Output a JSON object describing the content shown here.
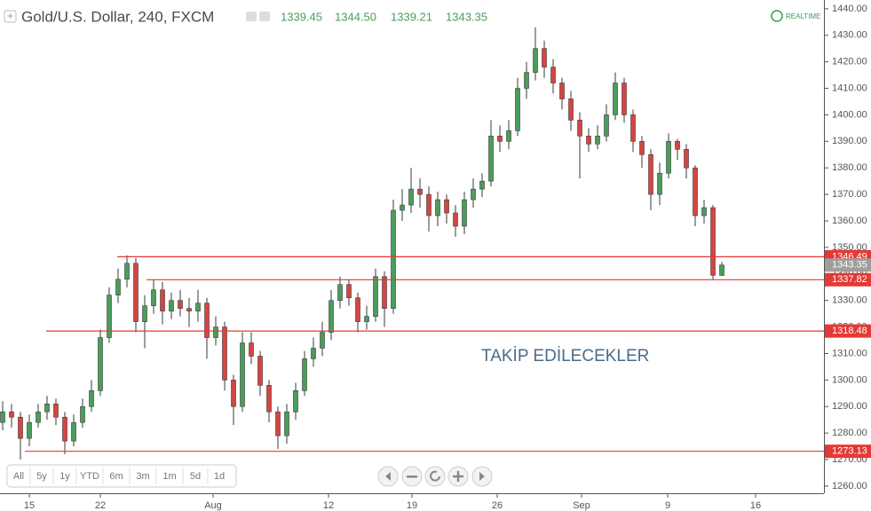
{
  "chart_data": {
    "type": "candlestick",
    "title": "Gold/U.S. Dollar, 240, FXCM",
    "header_values": [
      "1339.45",
      "1344.50",
      "1339.21",
      "1343.35"
    ],
    "realtime": "REALTIME",
    "annotation": "TAKİP EDİLECEKLER",
    "range_buttons": [
      "All",
      "5y",
      "1y",
      "YTD",
      "6m",
      "3m",
      "1m",
      "5d",
      "1d"
    ],
    "x": [
      0,
      1,
      2,
      3,
      4,
      5,
      6,
      7,
      8,
      9,
      10,
      11,
      12,
      13,
      14,
      15,
      16,
      17,
      18,
      19,
      20,
      21,
      22,
      23,
      24,
      25,
      26,
      27,
      28,
      29,
      30,
      31,
      32,
      33,
      34,
      35,
      36,
      37,
      38,
      39,
      40,
      41,
      42,
      43,
      44,
      45,
      46,
      47,
      48,
      49,
      50,
      51,
      52,
      53,
      54,
      55,
      56,
      57,
      58,
      59,
      60,
      61,
      62,
      63,
      64,
      65,
      66,
      67,
      68,
      69,
      70,
      71,
      72,
      73,
      74,
      75,
      76,
      77,
      78,
      79,
      80,
      81
    ],
    "open": [
      1284,
      1288,
      1286,
      1278,
      1284,
      1288,
      1291,
      1286,
      1277,
      1284,
      1290,
      1296,
      1316,
      1332,
      1338,
      1344,
      1322,
      1328,
      1334,
      1326,
      1330,
      1327,
      1326,
      1329,
      1316,
      1320,
      1300,
      1290,
      1314,
      1309,
      1298,
      1288,
      1279,
      1288,
      1296,
      1308,
      1312,
      1318,
      1330,
      1336,
      1331,
      1322,
      1324,
      1339,
      1327,
      1364,
      1366,
      1372,
      1370,
      1362,
      1368,
      1363,
      1358,
      1368,
      1372,
      1375,
      1392,
      1390,
      1394,
      1410,
      1416,
      1425,
      1418,
      1412,
      1406,
      1398,
      1392,
      1389,
      1392,
      1400,
      1412,
      1400,
      1390,
      1385,
      1370,
      1378,
      1390,
      1387,
      1380,
      1362,
      1365,
      1339.45
    ],
    "high": [
      1292,
      1291,
      1288,
      1287,
      1291,
      1294,
      1293,
      1288,
      1287,
      1293,
      1300,
      1319,
      1335,
      1342,
      1347,
      1346,
      1332,
      1338,
      1337,
      1333,
      1334,
      1331,
      1334,
      1331,
      1324,
      1322,
      1302,
      1318,
      1318,
      1311,
      1300,
      1290,
      1291,
      1299,
      1311,
      1316,
      1322,
      1334,
      1339,
      1338,
      1333,
      1328,
      1342,
      1341,
      1368,
      1372,
      1380,
      1376,
      1373,
      1371,
      1370,
      1366,
      1371,
      1376,
      1378,
      1398,
      1396,
      1398,
      1414,
      1420,
      1433,
      1428,
      1421,
      1414,
      1409,
      1401,
      1395,
      1396,
      1404,
      1416,
      1414,
      1402,
      1392,
      1387,
      1382,
      1393,
      1391,
      1389,
      1381,
      1368,
      1366,
      1344.5
    ],
    "low": [
      1281,
      1282,
      1270,
      1275,
      1282,
      1285,
      1283,
      1272,
      1275,
      1282,
      1288,
      1294,
      1314,
      1329,
      1335,
      1318,
      1312,
      1325,
      1321,
      1323,
      1324,
      1320,
      1322,
      1308,
      1313,
      1296,
      1283,
      1288,
      1306,
      1294,
      1284,
      1274,
      1276,
      1285,
      1294,
      1305,
      1309,
      1315,
      1327,
      1328,
      1318,
      1319,
      1322,
      1320,
      1325,
      1360,
      1363,
      1365,
      1356,
      1358,
      1359,
      1354,
      1355,
      1365,
      1369,
      1373,
      1386,
      1387,
      1392,
      1406,
      1413,
      1414,
      1408,
      1402,
      1394,
      1376,
      1386,
      1387,
      1390,
      1398,
      1397,
      1386,
      1380,
      1364,
      1366,
      1376,
      1383,
      1376,
      1358,
      1359,
      1338,
      1339.21
    ],
    "close": [
      1288,
      1286,
      1278,
      1284,
      1288,
      1291,
      1286,
      1277,
      1284,
      1290,
      1296,
      1316,
      1332,
      1338,
      1344,
      1322,
      1328,
      1334,
      1326,
      1330,
      1327,
      1326,
      1329,
      1316,
      1320,
      1300,
      1290,
      1314,
      1309,
      1298,
      1288,
      1279,
      1288,
      1296,
      1308,
      1312,
      1318,
      1330,
      1336,
      1331,
      1322,
      1324,
      1339,
      1327,
      1364,
      1366,
      1372,
      1370,
      1362,
      1368,
      1363,
      1358,
      1368,
      1372,
      1375,
      1392,
      1390,
      1394,
      1410,
      1416,
      1425,
      1418,
      1412,
      1406,
      1398,
      1392,
      1389,
      1392,
      1400,
      1412,
      1400,
      1390,
      1385,
      1370,
      1378,
      1390,
      1387,
      1380,
      1362,
      1365,
      1339.5,
      1343.35
    ],
    "up_color": "#4a9d5b",
    "down_color": "#d64541",
    "wick_color": "#3a3a3a",
    "xlim": [
      -0.3,
      92.5
    ],
    "xticks": [
      {
        "value": 3,
        "label": "15"
      },
      {
        "value": 11,
        "label": "22"
      },
      {
        "value": 23.7,
        "label": "Aug"
      },
      {
        "value": 36.7,
        "label": "12"
      },
      {
        "value": 46.1,
        "label": "19"
      },
      {
        "value": 55.7,
        "label": "26"
      },
      {
        "value": 65.2,
        "label": "Sep"
      },
      {
        "value": 74.9,
        "label": "9"
      },
      {
        "value": 84.8,
        "label": "16"
      }
    ],
    "ylim": [
      1257.3,
      1443.3
    ],
    "yticks": [
      {
        "value": 1260,
        "label": "1260.00"
      },
      {
        "value": 1270,
        "label": "1270.00"
      },
      {
        "value": 1280,
        "label": "1280.00"
      },
      {
        "value": 1290,
        "label": "1290.00"
      },
      {
        "value": 1300,
        "label": "1300.00"
      },
      {
        "value": 1310,
        "label": "1310.00"
      },
      {
        "value": 1320,
        "label": "1320.00"
      },
      {
        "value": 1330,
        "label": "1330.00"
      },
      {
        "value": 1340,
        "label": "1340.00"
      },
      {
        "value": 1350,
        "label": "1350.00"
      },
      {
        "value": 1360,
        "label": "1360.00"
      },
      {
        "value": 1370,
        "label": "1370.00"
      },
      {
        "value": 1380,
        "label": "1380.00"
      },
      {
        "value": 1390,
        "label": "1390.00"
      },
      {
        "value": 1400,
        "label": "1400.00"
      },
      {
        "value": 1410,
        "label": "1410.00"
      },
      {
        "value": 1420,
        "label": "1420.00"
      },
      {
        "value": 1430,
        "label": "1430.00"
      },
      {
        "value": 1440,
        "label": "1440.00"
      }
    ],
    "hlines": [
      1346.49,
      1337.82,
      1318.48,
      1273.13
    ],
    "hline_color": "#e53935"
  }
}
